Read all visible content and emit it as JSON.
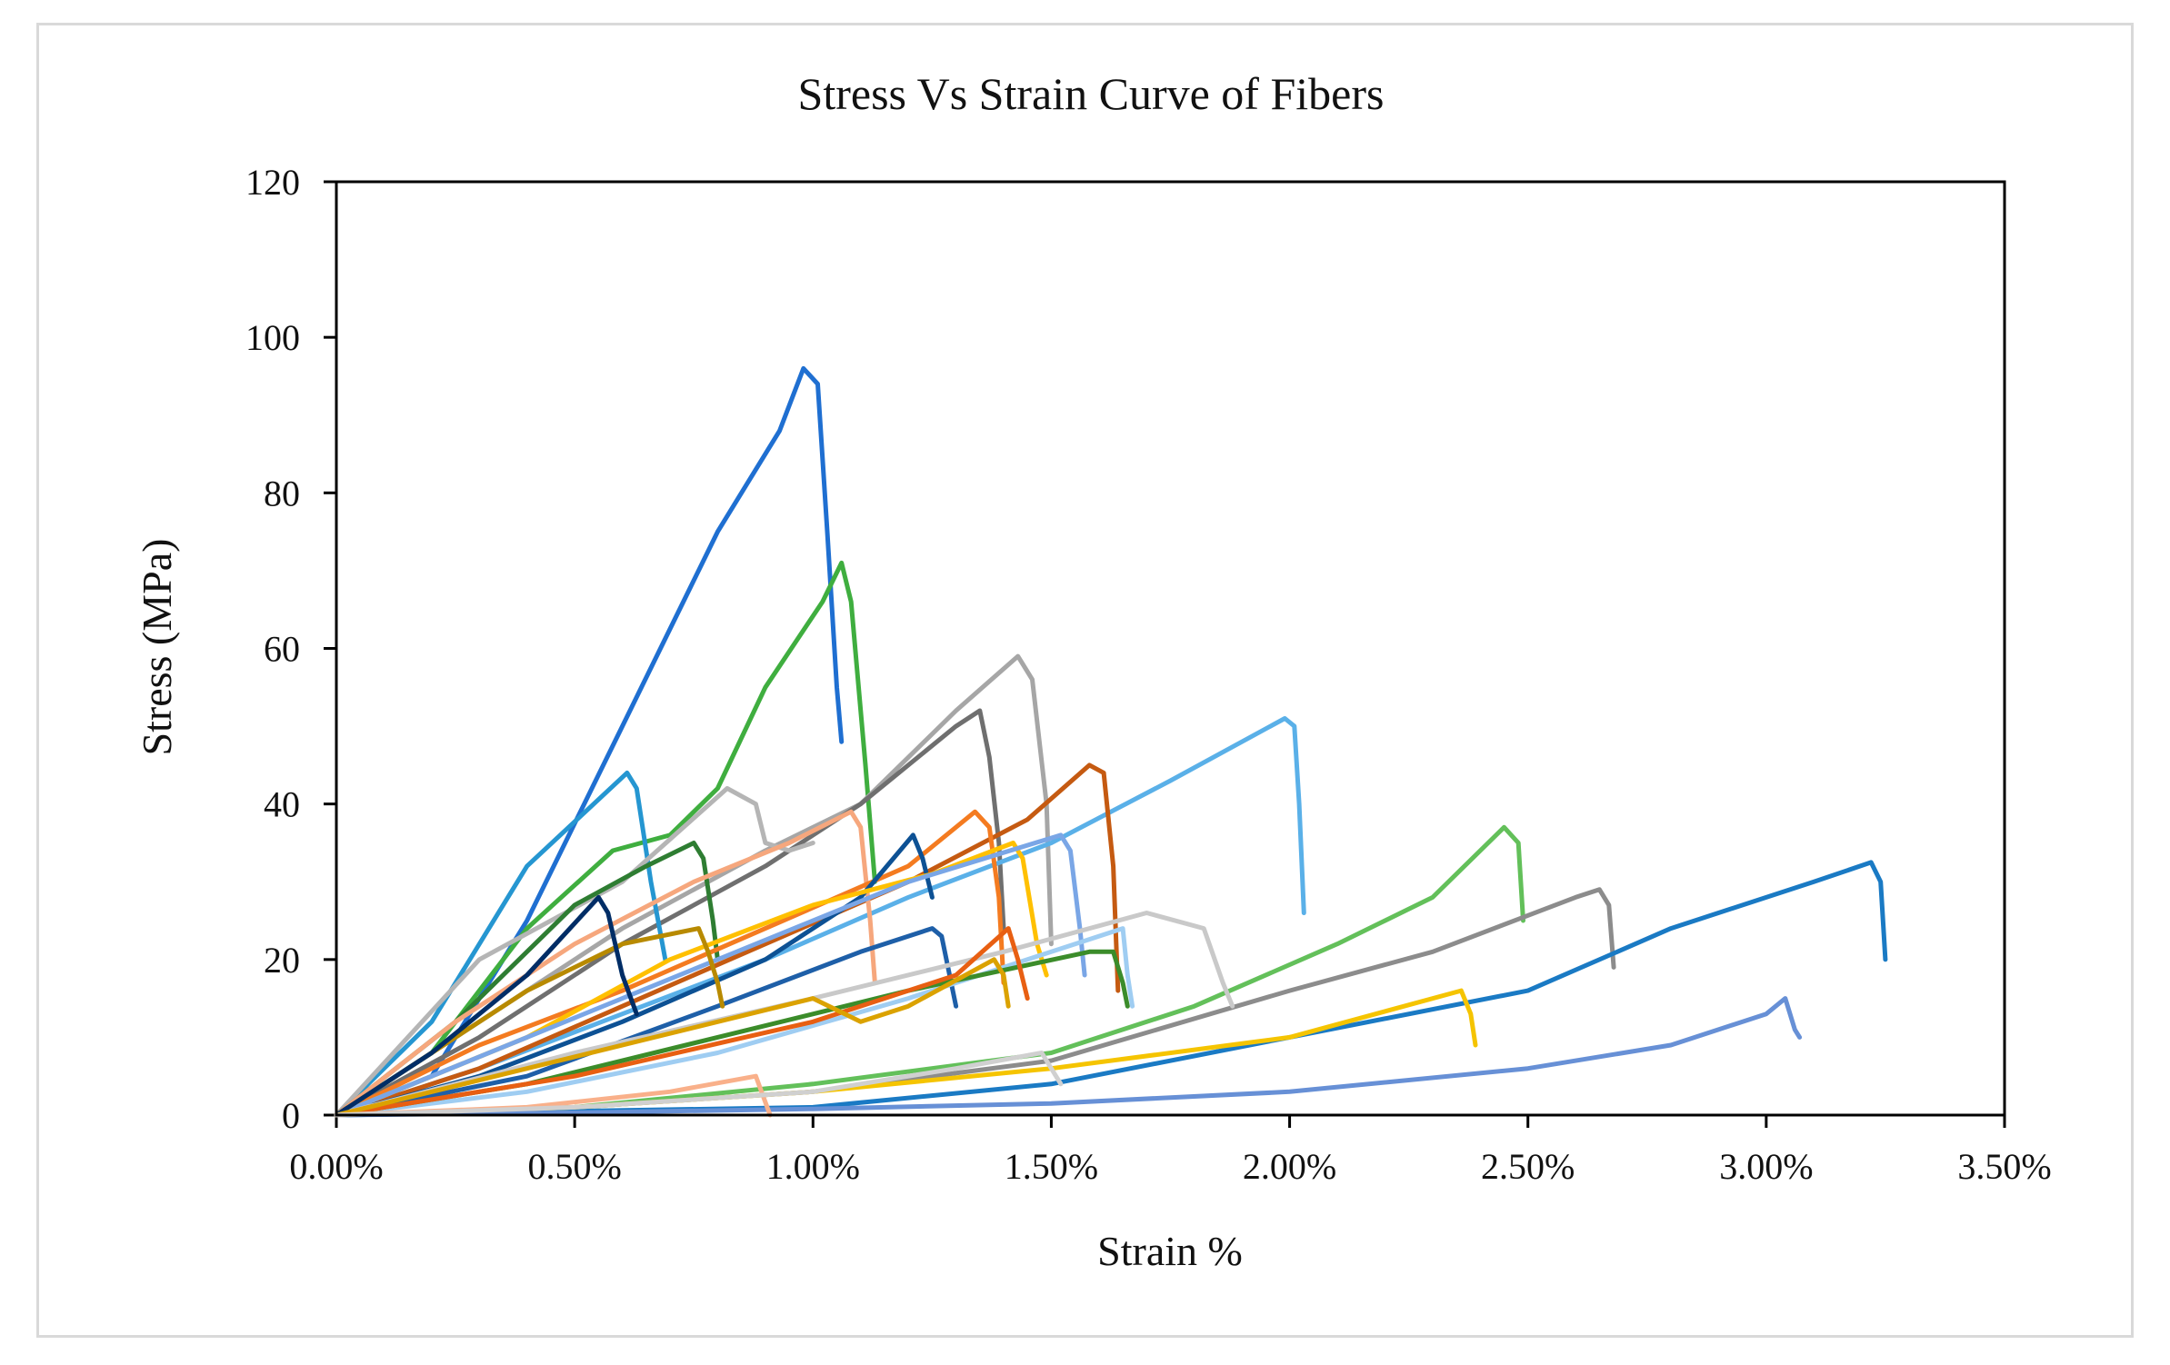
{
  "chart_data": {
    "type": "line",
    "title": "Stress Vs Strain Curve of Fibers",
    "xlabel": "Strain %",
    "ylabel": "Stress (MPa)",
    "xlim": [
      0,
      0.035
    ],
    "ylim": [
      0,
      120
    ],
    "xticks": [
      0,
      0.005,
      0.01,
      0.015,
      0.02,
      0.025,
      0.03,
      0.035
    ],
    "xtick_labels": [
      "0.00%",
      "0.50%",
      "1.00%",
      "1.50%",
      "2.00%",
      "2.50%",
      "3.00%",
      "3.50%"
    ],
    "yticks": [
      0,
      20,
      40,
      60,
      80,
      100,
      120
    ],
    "ytick_labels": [
      "0",
      "20",
      "40",
      "60",
      "80",
      "100",
      "120"
    ],
    "grid": false,
    "legend": "none",
    "series": [
      {
        "color": "#1f6fd1",
        "points": [
          [
            0,
            0
          ],
          [
            0.002,
            5
          ],
          [
            0.004,
            25
          ],
          [
            0.006,
            50
          ],
          [
            0.008,
            75
          ],
          [
            0.0093,
            88
          ],
          [
            0.0098,
            96
          ],
          [
            0.0101,
            94
          ],
          [
            0.0103,
            75
          ],
          [
            0.0105,
            55
          ],
          [
            0.0106,
            48
          ]
        ]
      },
      {
        "color": "#3fae3f",
        "points": [
          [
            0,
            0
          ],
          [
            0.002,
            8
          ],
          [
            0.004,
            24
          ],
          [
            0.0058,
            34
          ],
          [
            0.007,
            36
          ],
          [
            0.008,
            42
          ],
          [
            0.009,
            55
          ],
          [
            0.0102,
            66
          ],
          [
            0.0106,
            71
          ],
          [
            0.0108,
            66
          ],
          [
            0.0111,
            45
          ],
          [
            0.0113,
            30
          ]
        ]
      },
      {
        "color": "#a6a6a6",
        "points": [
          [
            0,
            0
          ],
          [
            0.003,
            12
          ],
          [
            0.006,
            24
          ],
          [
            0.009,
            34
          ],
          [
            0.011,
            40
          ],
          [
            0.013,
            52
          ],
          [
            0.0143,
            59
          ],
          [
            0.0146,
            56
          ],
          [
            0.0149,
            40
          ],
          [
            0.015,
            22
          ]
        ]
      },
      {
        "color": "#6f6f6f",
        "points": [
          [
            0,
            0
          ],
          [
            0.003,
            10
          ],
          [
            0.006,
            22
          ],
          [
            0.009,
            32
          ],
          [
            0.011,
            40
          ],
          [
            0.013,
            50
          ],
          [
            0.0135,
            52
          ],
          [
            0.0137,
            46
          ],
          [
            0.0139,
            35
          ],
          [
            0.014,
            24
          ]
        ]
      },
      {
        "color": "#5ab0e8",
        "points": [
          [
            0,
            0
          ],
          [
            0.003,
            6
          ],
          [
            0.006,
            13
          ],
          [
            0.009,
            20
          ],
          [
            0.012,
            28
          ],
          [
            0.015,
            35
          ],
          [
            0.0175,
            43
          ],
          [
            0.0199,
            51
          ],
          [
            0.0201,
            50
          ],
          [
            0.0202,
            40
          ],
          [
            0.0203,
            26
          ]
        ]
      },
      {
        "color": "#c55a11",
        "points": [
          [
            0,
            0
          ],
          [
            0.003,
            6
          ],
          [
            0.006,
            14
          ],
          [
            0.009,
            22
          ],
          [
            0.012,
            30
          ],
          [
            0.0145,
            38
          ],
          [
            0.0158,
            45
          ],
          [
            0.0161,
            44
          ],
          [
            0.0163,
            32
          ],
          [
            0.0164,
            16
          ]
        ]
      },
      {
        "color": "#63c05a",
        "points": [
          [
            0,
            0
          ],
          [
            0.005,
            1
          ],
          [
            0.01,
            4
          ],
          [
            0.015,
            8
          ],
          [
            0.018,
            14
          ],
          [
            0.021,
            22
          ],
          [
            0.023,
            28
          ],
          [
            0.0245,
            37
          ],
          [
            0.0248,
            35
          ],
          [
            0.0249,
            25
          ]
        ]
      },
      {
        "color": "#8c8c8c",
        "points": [
          [
            0,
            0
          ],
          [
            0.005,
            1
          ],
          [
            0.01,
            3
          ],
          [
            0.015,
            7
          ],
          [
            0.02,
            16
          ],
          [
            0.023,
            21
          ],
          [
            0.026,
            28
          ],
          [
            0.0265,
            29
          ],
          [
            0.0267,
            27
          ],
          [
            0.0268,
            19
          ]
        ]
      },
      {
        "color": "#1a7ac4",
        "points": [
          [
            0,
            0
          ],
          [
            0.005,
            0.5
          ],
          [
            0.01,
            1
          ],
          [
            0.015,
            4
          ],
          [
            0.02,
            10
          ],
          [
            0.025,
            16
          ],
          [
            0.028,
            24
          ],
          [
            0.031,
            30
          ],
          [
            0.0322,
            32.5
          ],
          [
            0.0324,
            30
          ],
          [
            0.0325,
            20
          ]
        ]
      },
      {
        "color": "#f5c400",
        "points": [
          [
            0,
            0
          ],
          [
            0.005,
            1
          ],
          [
            0.01,
            3
          ],
          [
            0.015,
            6
          ],
          [
            0.02,
            10
          ],
          [
            0.0236,
            16
          ],
          [
            0.0238,
            13
          ],
          [
            0.0239,
            9
          ]
        ]
      },
      {
        "color": "#6790d6",
        "points": [
          [
            0,
            0
          ],
          [
            0.005,
            0.3
          ],
          [
            0.01,
            0.8
          ],
          [
            0.015,
            1.5
          ],
          [
            0.02,
            3
          ],
          [
            0.025,
            6
          ],
          [
            0.028,
            9
          ],
          [
            0.03,
            13
          ],
          [
            0.0304,
            15
          ],
          [
            0.0306,
            11
          ],
          [
            0.0307,
            10
          ]
        ]
      },
      {
        "color": "#2596d1",
        "points": [
          [
            0,
            0
          ],
          [
            0.002,
            12
          ],
          [
            0.004,
            32
          ],
          [
            0.0061,
            44
          ],
          [
            0.0063,
            42
          ],
          [
            0.0066,
            30
          ],
          [
            0.0069,
            20
          ]
        ]
      },
      {
        "color": "#b5b5b5",
        "points": [
          [
            0,
            0
          ],
          [
            0.003,
            20
          ],
          [
            0.006,
            30
          ],
          [
            0.0082,
            42
          ],
          [
            0.0088,
            40
          ],
          [
            0.009,
            35
          ],
          [
            0.0095,
            34
          ],
          [
            0.01,
            35
          ]
        ]
      },
      {
        "color": "#2e7d32",
        "points": [
          [
            0,
            0
          ],
          [
            0.0025,
            12
          ],
          [
            0.005,
            27
          ],
          [
            0.0065,
            32
          ],
          [
            0.0075,
            35
          ],
          [
            0.0077,
            33
          ],
          [
            0.0079,
            25
          ],
          [
            0.008,
            20
          ]
        ]
      },
      {
        "color": "#f6a77d",
        "points": [
          [
            0,
            0
          ],
          [
            0.0025,
            12
          ],
          [
            0.005,
            22
          ],
          [
            0.0075,
            30
          ],
          [
            0.0095,
            35
          ],
          [
            0.0108,
            39
          ],
          [
            0.011,
            37
          ],
          [
            0.0112,
            25
          ],
          [
            0.0113,
            17
          ]
        ]
      },
      {
        "color": "#f47b20",
        "points": [
          [
            0,
            0
          ],
          [
            0.003,
            9
          ],
          [
            0.006,
            16
          ],
          [
            0.009,
            24
          ],
          [
            0.012,
            32
          ],
          [
            0.0134,
            39
          ],
          [
            0.0137,
            37
          ],
          [
            0.0139,
            28
          ],
          [
            0.014,
            17
          ]
        ]
      },
      {
        "color": "#0d5194",
        "points": [
          [
            0,
            0
          ],
          [
            0.003,
            5
          ],
          [
            0.006,
            12
          ],
          [
            0.009,
            20
          ],
          [
            0.011,
            28
          ],
          [
            0.0121,
            36
          ],
          [
            0.0123,
            33
          ],
          [
            0.0125,
            28
          ]
        ]
      },
      {
        "color": "#1e5fa8",
        "points": [
          [
            0,
            0
          ],
          [
            0.004,
            5
          ],
          [
            0.008,
            14
          ],
          [
            0.011,
            21
          ],
          [
            0.0125,
            24
          ],
          [
            0.0127,
            23
          ],
          [
            0.0129,
            17
          ],
          [
            0.013,
            14
          ]
        ]
      },
      {
        "color": "#ffc000",
        "points": [
          [
            0,
            0
          ],
          [
            0.004,
            10
          ],
          [
            0.007,
            20
          ],
          [
            0.01,
            27
          ],
          [
            0.0125,
            31
          ],
          [
            0.0142,
            35
          ],
          [
            0.0144,
            33
          ],
          [
            0.0147,
            22
          ],
          [
            0.0149,
            18
          ]
        ]
      },
      {
        "color": "#7aa6e6",
        "points": [
          [
            0,
            0
          ],
          [
            0.004,
            10
          ],
          [
            0.008,
            20
          ],
          [
            0.012,
            30
          ],
          [
            0.0152,
            36
          ],
          [
            0.0154,
            34
          ],
          [
            0.0156,
            24
          ],
          [
            0.0157,
            18
          ]
        ]
      },
      {
        "color": "#c9c9c9",
        "points": [
          [
            0,
            0
          ],
          [
            0.005,
            8
          ],
          [
            0.01,
            15
          ],
          [
            0.014,
            21
          ],
          [
            0.017,
            26
          ],
          [
            0.0182,
            24
          ],
          [
            0.0186,
            17
          ],
          [
            0.0188,
            14
          ]
        ]
      },
      {
        "color": "#9fcdf2",
        "points": [
          [
            0,
            0
          ],
          [
            0.004,
            3
          ],
          [
            0.008,
            8
          ],
          [
            0.012,
            15
          ],
          [
            0.0155,
            22
          ],
          [
            0.0165,
            24
          ],
          [
            0.0166,
            18
          ],
          [
            0.0167,
            14
          ]
        ]
      },
      {
        "color": "#3b8c2a",
        "points": [
          [
            0,
            0
          ],
          [
            0.004,
            4
          ],
          [
            0.008,
            10
          ],
          [
            0.012,
            16
          ],
          [
            0.0158,
            21
          ],
          [
            0.0163,
            21
          ],
          [
            0.0165,
            17
          ],
          [
            0.0166,
            14
          ]
        ]
      },
      {
        "color": "#e85f12",
        "points": [
          [
            0,
            0
          ],
          [
            0.005,
            5
          ],
          [
            0.01,
            12
          ],
          [
            0.013,
            18
          ],
          [
            0.0141,
            24
          ],
          [
            0.0143,
            20
          ],
          [
            0.0145,
            15
          ]
        ]
      },
      {
        "color": "#b88a00",
        "points": [
          [
            0,
            0
          ],
          [
            0.002,
            8
          ],
          [
            0.004,
            16
          ],
          [
            0.006,
            22
          ],
          [
            0.0076,
            24
          ],
          [
            0.0078,
            21
          ],
          [
            0.008,
            17
          ],
          [
            0.0081,
            14
          ]
        ]
      },
      {
        "color": "#002d66",
        "points": [
          [
            0,
            0
          ],
          [
            0.002,
            8
          ],
          [
            0.004,
            18
          ],
          [
            0.0055,
            28
          ],
          [
            0.0057,
            26
          ],
          [
            0.006,
            18
          ],
          [
            0.0063,
            13
          ]
        ]
      },
      {
        "color": "#dba200",
        "points": [
          [
            0,
            0
          ],
          [
            0.004,
            6
          ],
          [
            0.008,
            12
          ],
          [
            0.01,
            15
          ],
          [
            0.011,
            12
          ],
          [
            0.012,
            14
          ],
          [
            0.0138,
            20
          ],
          [
            0.014,
            18
          ],
          [
            0.0141,
            14
          ]
        ]
      },
      {
        "color": "#f9b08a",
        "points": [
          [
            0,
            0
          ],
          [
            0.004,
            1
          ],
          [
            0.007,
            3
          ],
          [
            0.0088,
            5
          ],
          [
            0.0091,
            0
          ]
        ]
      },
      {
        "color": "#d0d0d0",
        "points": [
          [
            0,
            0
          ],
          [
            0.005,
            1
          ],
          [
            0.01,
            3
          ],
          [
            0.013,
            6
          ],
          [
            0.0148,
            8
          ],
          [
            0.0152,
            4
          ]
        ]
      }
    ]
  }
}
